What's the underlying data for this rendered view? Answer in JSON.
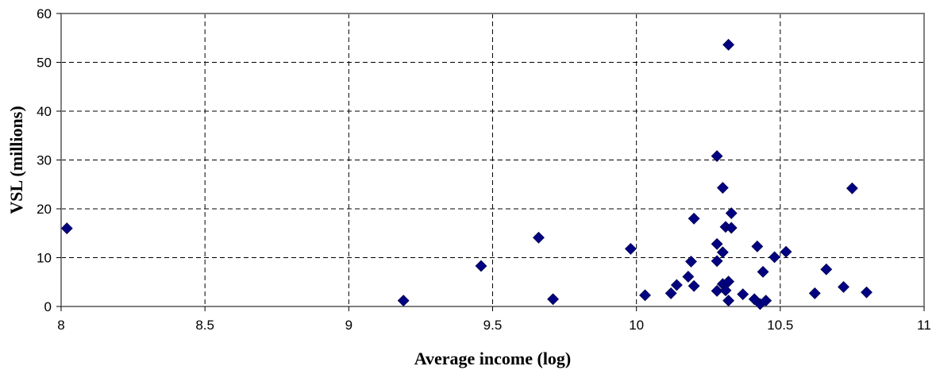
{
  "chart_data": {
    "type": "scatter",
    "title": "",
    "xlabel": "Average income (log)",
    "ylabel": "VSL (millions)",
    "xlim": [
      8,
      11
    ],
    "ylim": [
      0,
      60
    ],
    "x_ticks": [
      "8",
      "8.5",
      "9",
      "9.5",
      "10",
      "10.5",
      "11"
    ],
    "y_ticks": [
      "0",
      "10",
      "20",
      "30",
      "40",
      "50",
      "60"
    ],
    "grid": true,
    "legend": "none",
    "marker": "diamond",
    "marker_color": "#000080",
    "points": [
      {
        "x": 8.02,
        "y": 16.0
      },
      {
        "x": 9.19,
        "y": 1.2
      },
      {
        "x": 9.46,
        "y": 8.3
      },
      {
        "x": 9.66,
        "y": 14.1
      },
      {
        "x": 9.71,
        "y": 1.5
      },
      {
        "x": 9.98,
        "y": 11.8
      },
      {
        "x": 10.03,
        "y": 2.3
      },
      {
        "x": 10.12,
        "y": 2.7
      },
      {
        "x": 10.14,
        "y": 4.4
      },
      {
        "x": 10.18,
        "y": 6.1
      },
      {
        "x": 10.19,
        "y": 9.2
      },
      {
        "x": 10.2,
        "y": 18.0
      },
      {
        "x": 10.2,
        "y": 4.2
      },
      {
        "x": 10.28,
        "y": 30.8
      },
      {
        "x": 10.28,
        "y": 12.8
      },
      {
        "x": 10.28,
        "y": 9.3
      },
      {
        "x": 10.28,
        "y": 3.2
      },
      {
        "x": 10.3,
        "y": 24.3
      },
      {
        "x": 10.3,
        "y": 11.1
      },
      {
        "x": 10.3,
        "y": 4.6
      },
      {
        "x": 10.31,
        "y": 3.3
      },
      {
        "x": 10.31,
        "y": 16.3
      },
      {
        "x": 10.32,
        "y": 5.1
      },
      {
        "x": 10.32,
        "y": 53.6
      },
      {
        "x": 10.32,
        "y": 1.2
      },
      {
        "x": 10.33,
        "y": 19.1
      },
      {
        "x": 10.33,
        "y": 16.1
      },
      {
        "x": 10.37,
        "y": 2.5
      },
      {
        "x": 10.41,
        "y": 1.5
      },
      {
        "x": 10.42,
        "y": 12.3
      },
      {
        "x": 10.43,
        "y": 0.5
      },
      {
        "x": 10.44,
        "y": 7.1
      },
      {
        "x": 10.45,
        "y": 1.2
      },
      {
        "x": 10.48,
        "y": 10.1
      },
      {
        "x": 10.52,
        "y": 11.2
      },
      {
        "x": 10.62,
        "y": 2.7
      },
      {
        "x": 10.66,
        "y": 7.6
      },
      {
        "x": 10.72,
        "y": 4.0
      },
      {
        "x": 10.75,
        "y": 24.2
      },
      {
        "x": 10.8,
        "y": 2.9
      }
    ]
  }
}
